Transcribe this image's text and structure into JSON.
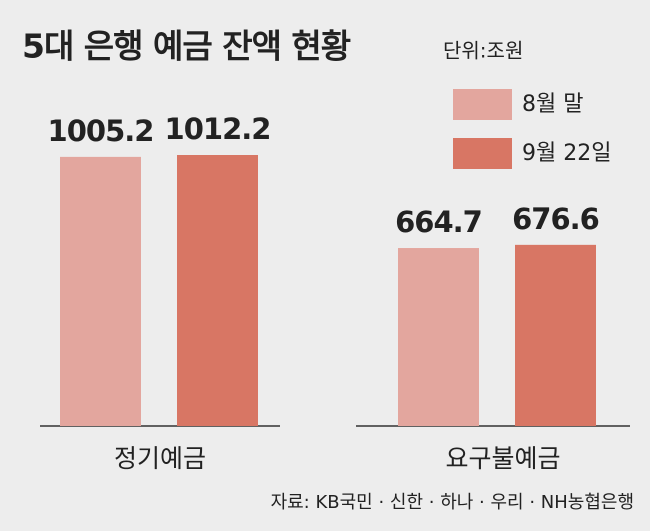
{
  "chart_data": {
    "type": "bar",
    "title": "5대 은행 예금 잔액 현황",
    "unit": "단위:조원",
    "categories": [
      "정기예금",
      "요구불예금"
    ],
    "series": [
      {
        "name": "8월 말",
        "color": "#e3a69e",
        "values": [
          1005.2,
          664.7
        ]
      },
      {
        "name": "9월 22일",
        "color": "#d87664",
        "values": [
          1012.2,
          676.6
        ]
      }
    ],
    "source": "자료: KB국민 · 신한 · 하나 · 우리 · NH농협은행"
  }
}
